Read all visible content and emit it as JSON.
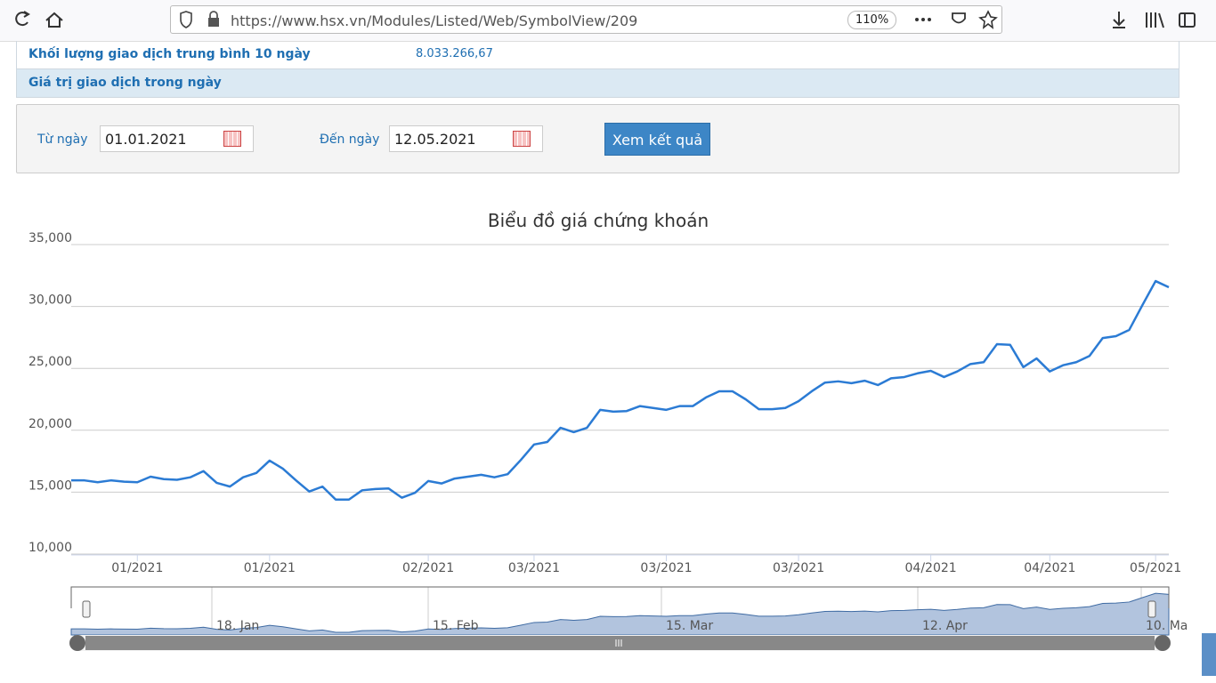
{
  "browser": {
    "url": "https://www.hsx.vn/Modules/Listed/Web/SymbolView/209",
    "zoom": "110%"
  },
  "info_rows": [
    {
      "label": "Khối lượng giao dịch trung bình 10 ngày",
      "value": "8.033.266,67"
    },
    {
      "label": "Giá trị giao dịch trong ngày"
    }
  ],
  "filter": {
    "from_label": "Từ ngày",
    "from": "01.01.2021",
    "to_label": "Đến ngày",
    "to": "12.05.2021",
    "button": "Xem kết quả"
  },
  "chart_data": {
    "type": "line",
    "title": "Biểu đồ giá chứng khoán",
    "color": "#2b7bd4",
    "categories": [
      null,
      null,
      null,
      null,
      null,
      "01/2021",
      null,
      null,
      null,
      null,
      null,
      null,
      null,
      null,
      null,
      "01/2021",
      null,
      null,
      null,
      null,
      null,
      null,
      null,
      null,
      null,
      null,
      null,
      "02/2021",
      null,
      null,
      null,
      null,
      null,
      null,
      null,
      "03/2021",
      null,
      null,
      null,
      null,
      null,
      null,
      null,
      null,
      null,
      "03/2021",
      null,
      null,
      null,
      null,
      null,
      null,
      null,
      null,
      null,
      "03/2021",
      null,
      null,
      null,
      null,
      null,
      null,
      null,
      null,
      null,
      "04/2021",
      null,
      null,
      null,
      null,
      null,
      null,
      null,
      null,
      "04/2021",
      null,
      null,
      null,
      null,
      null,
      null,
      null,
      "05/2021",
      null
    ],
    "values": [
      15950,
      15950,
      15800,
      15950,
      15850,
      15800,
      16250,
      16050,
      16000,
      16200,
      16700,
      15750,
      15450,
      16200,
      16550,
      17550,
      16900,
      15950,
      15050,
      15450,
      14400,
      14400,
      15150,
      15250,
      15300,
      14550,
      14950,
      15900,
      15700,
      16100,
      16250,
      16400,
      16200,
      16450,
      17600,
      18850,
      19050,
      20200,
      19850,
      20200,
      21650,
      21500,
      21550,
      21950,
      21800,
      21650,
      21950,
      21950,
      22650,
      23150,
      23150,
      22500,
      21700,
      21700,
      21800,
      22350,
      23150,
      23850,
      23950,
      23800,
      24000,
      23650,
      24200,
      24300,
      24600,
      24800,
      24300,
      24750,
      25350,
      25500,
      26950,
      26900,
      25100,
      25800,
      24750,
      25250,
      25500,
      26000,
      27450,
      27600,
      28100,
      30100,
      32050,
      31550
    ],
    "ylim": [
      10000,
      35000
    ],
    "yticks": [
      {
        "value": 10000,
        "label": "10,000"
      },
      {
        "value": 15000,
        "label": "15,000"
      },
      {
        "value": 20000,
        "label": "20,000"
      },
      {
        "value": 25000,
        "label": "25,000"
      },
      {
        "value": 30000,
        "label": "30,000"
      },
      {
        "value": 35000,
        "label": "35,000"
      }
    ],
    "grid": true,
    "navigator_labels": [
      "18. Jan",
      "15. Feb",
      "15. Mar",
      "12. Apr",
      "10. Ma"
    ]
  }
}
